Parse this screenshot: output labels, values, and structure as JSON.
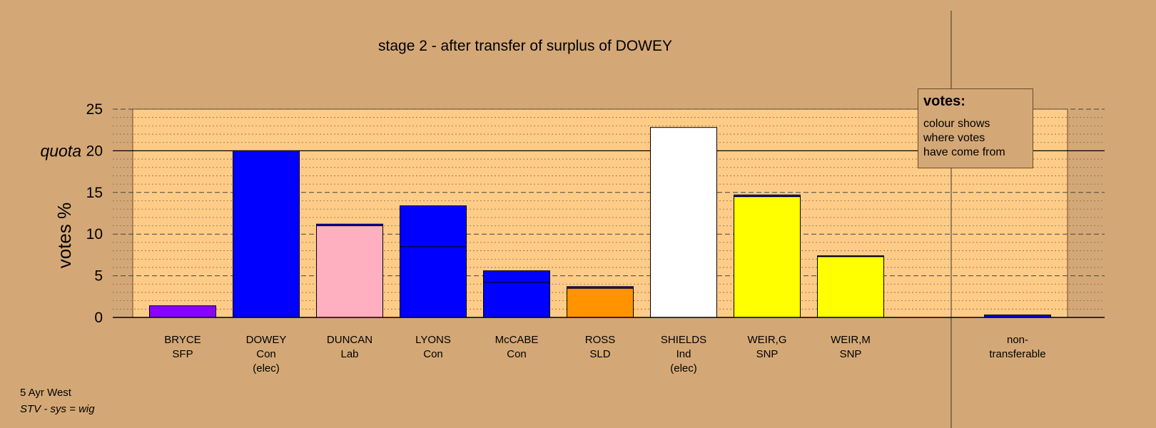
{
  "chart_data": {
    "type": "bar",
    "title": "stage 2 - after transfer of surplus of DOWEY",
    "ylabel": "votes %",
    "quota_label": "quota",
    "quota": 20,
    "ylim": [
      0,
      25
    ],
    "yticks": [
      "0",
      "5",
      "10",
      "15",
      "20",
      "25"
    ],
    "stacked": true,
    "categories": [
      {
        "name": "BRYCE",
        "party": "SFP",
        "note": ""
      },
      {
        "name": "DOWEY",
        "party": "Con",
        "note": "(elec)"
      },
      {
        "name": "DUNCAN",
        "party": "Lab",
        "note": ""
      },
      {
        "name": "LYONS",
        "party": "Con",
        "note": ""
      },
      {
        "name": "McCABE",
        "party": "Con",
        "note": ""
      },
      {
        "name": "ROSS",
        "party": "SLD",
        "note": ""
      },
      {
        "name": "SHIELDS",
        "party": "Ind",
        "note": "(elec)"
      },
      {
        "name": "WEIR,G",
        "party": "SNP",
        "note": ""
      },
      {
        "name": "WEIR,M",
        "party": "SNP",
        "note": ""
      }
    ],
    "bars": [
      [
        {
          "value": 1.4,
          "color": "#8b00ff"
        }
      ],
      [
        {
          "value": 20.0,
          "color": "#0000ff"
        }
      ],
      [
        {
          "value": 11.0,
          "color": "#ffb0c0"
        },
        {
          "value": 0.2,
          "color": "#0000ff"
        }
      ],
      [
        {
          "value": 8.5,
          "color": "#0000ff"
        },
        {
          "value": 4.9,
          "color": "#0000ff"
        }
      ],
      [
        {
          "value": 4.2,
          "color": "#0000ff"
        },
        {
          "value": 1.4,
          "color": "#0000ff"
        }
      ],
      [
        {
          "value": 3.5,
          "color": "#ff9400"
        },
        {
          "value": 0.2,
          "color": "#0000ff"
        }
      ],
      [
        {
          "value": 22.8,
          "color": "#ffffff"
        }
      ],
      [
        {
          "value": 14.5,
          "color": "#ffff00"
        },
        {
          "value": 0.2,
          "color": "#0000ff"
        }
      ],
      [
        {
          "value": 7.3,
          "color": "#ffff00"
        },
        {
          "value": 0.1,
          "color": "#0000ff"
        }
      ]
    ],
    "non_transferable": {
      "label_line1": "non-",
      "label_line2": "transferable",
      "value": 0.3,
      "color": "#0000ff"
    },
    "plot_background": "#ffcc88",
    "grid": true
  },
  "legend": {
    "title": "votes:",
    "lines": [
      "colour shows",
      "where votes",
      "have come from"
    ]
  },
  "footer": {
    "line1": "5 Ayr West",
    "line2": "STV - sys = wig"
  }
}
